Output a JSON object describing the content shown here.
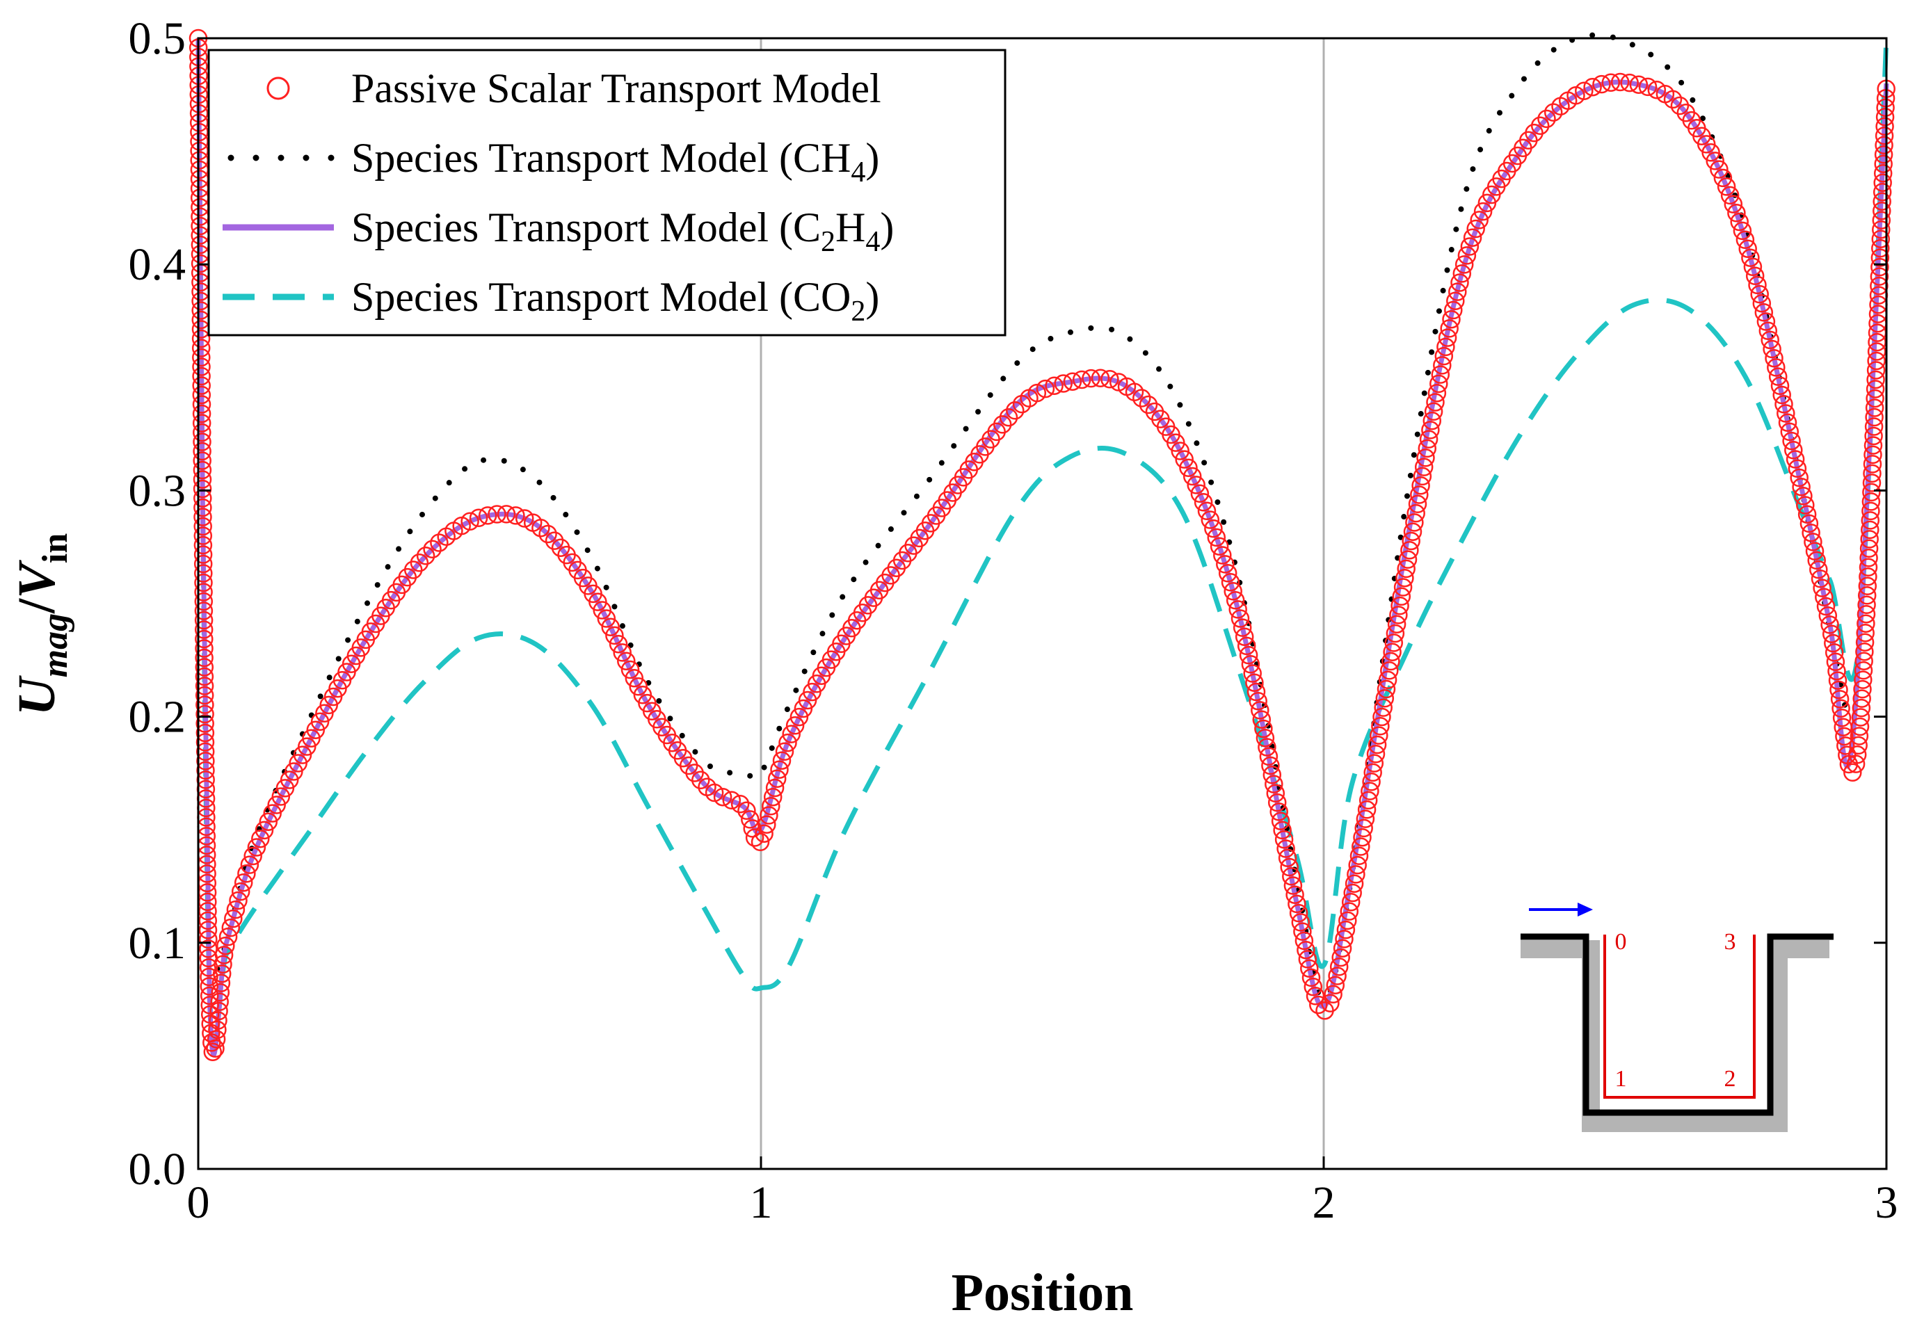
{
  "chart_data": {
    "type": "line",
    "xlabel": "Position",
    "ylabel": {
      "main_u": "U",
      "sub_u": "mag",
      "slash": "/",
      "main_v": "V",
      "sub_v": "in"
    },
    "xlim": [
      0,
      3
    ],
    "ylim": [
      0.0,
      0.5
    ],
    "x_ticks": [
      "0",
      "1",
      "2",
      "3"
    ],
    "y_ticks": [
      "0.0",
      "0.1",
      "0.2",
      "0.3",
      "0.4",
      "0.5"
    ],
    "gridlines_x": [
      1,
      2
    ],
    "legend_position": "top-left",
    "series": [
      {
        "name": "Passive Scalar Transport Model",
        "style": "open-circles",
        "color": "#ff2020",
        "legend": {
          "base": "Passive Scalar Transport Model",
          "sub": "",
          "tail": ""
        },
        "x": [
          0.0,
          0.02,
          0.05,
          0.1,
          0.2,
          0.3,
          0.4,
          0.5,
          0.6,
          0.7,
          0.8,
          0.9,
          0.97,
          1.0,
          1.05,
          1.15,
          1.3,
          1.45,
          1.55,
          1.65,
          1.75,
          1.85,
          1.95,
          2.0,
          2.05,
          2.15,
          2.25,
          2.35,
          2.45,
          2.55,
          2.65,
          2.75,
          2.85,
          2.9,
          2.95,
          3.0
        ],
        "y": [
          0.5,
          0.077,
          0.1,
          0.14,
          0.19,
          0.235,
          0.27,
          0.288,
          0.285,
          0.255,
          0.205,
          0.17,
          0.16,
          0.145,
          0.19,
          0.235,
          0.285,
          0.335,
          0.348,
          0.346,
          0.315,
          0.245,
          0.12,
          0.07,
          0.12,
          0.27,
          0.4,
          0.45,
          0.475,
          0.48,
          0.465,
          0.41,
          0.3,
          0.24,
          0.187,
          0.48
        ]
      },
      {
        "name": "Species Transport Model (CH4)",
        "style": "dotted",
        "color": "#000000",
        "legend": {
          "base": "Species Transport Model (CH",
          "sub": "4",
          "tail": ")"
        },
        "x": [
          0.02,
          0.05,
          0.1,
          0.2,
          0.3,
          0.4,
          0.5,
          0.6,
          0.7,
          0.8,
          0.9,
          0.97,
          1.0,
          1.05,
          1.15,
          1.3,
          1.45,
          1.55,
          1.65,
          1.75,
          1.85,
          1.95,
          2.0,
          2.05,
          2.15,
          2.25,
          2.35,
          2.45,
          2.55,
          2.65,
          2.75,
          2.85,
          2.93
        ],
        "y": [
          0.08,
          0.1,
          0.145,
          0.2,
          0.25,
          0.29,
          0.313,
          0.305,
          0.27,
          0.215,
          0.18,
          0.175,
          0.175,
          0.205,
          0.255,
          0.305,
          0.355,
          0.37,
          0.368,
          0.335,
          0.26,
          0.13,
          0.075,
          0.13,
          0.3,
          0.43,
          0.48,
          0.5,
          0.497,
          0.475,
          0.415,
          0.3,
          0.2
        ]
      },
      {
        "name": "Species Transport Model (C2H4)",
        "style": "solid",
        "color": "#a366e0",
        "legend": {
          "base": "Species Transport Model (C",
          "sub": "2",
          "tail": "H|4|)"
        },
        "x": [
          0.0,
          0.02,
          0.05,
          0.1,
          0.2,
          0.3,
          0.4,
          0.5,
          0.6,
          0.7,
          0.8,
          0.9,
          0.97,
          1.0,
          1.05,
          1.15,
          1.3,
          1.45,
          1.55,
          1.65,
          1.75,
          1.85,
          1.95,
          2.0,
          2.05,
          2.15,
          2.25,
          2.35,
          2.45,
          2.55,
          2.65,
          2.75,
          2.85,
          2.9,
          2.94,
          3.0
        ],
        "y": [
          0.5,
          0.077,
          0.1,
          0.14,
          0.19,
          0.235,
          0.27,
          0.288,
          0.285,
          0.255,
          0.205,
          0.17,
          0.16,
          0.15,
          0.19,
          0.235,
          0.285,
          0.337,
          0.348,
          0.346,
          0.315,
          0.245,
          0.12,
          0.072,
          0.13,
          0.28,
          0.4,
          0.45,
          0.475,
          0.48,
          0.465,
          0.41,
          0.3,
          0.24,
          0.19,
          0.48
        ]
      },
      {
        "name": "Species Transport Model (CO2)",
        "style": "dashed",
        "color": "#20c4c4",
        "legend": {
          "base": "Species Transport Model (CO",
          "sub": "2",
          "tail": ")"
        },
        "x": [
          0.0,
          0.02,
          0.05,
          0.1,
          0.2,
          0.3,
          0.4,
          0.5,
          0.6,
          0.7,
          0.8,
          0.9,
          0.97,
          1.0,
          1.05,
          1.15,
          1.3,
          1.45,
          1.55,
          1.65,
          1.75,
          1.85,
          1.95,
          2.0,
          2.05,
          2.15,
          2.25,
          2.35,
          2.45,
          2.55,
          2.65,
          2.75,
          2.85,
          2.9,
          2.95,
          3.0
        ],
        "y": [
          0.5,
          0.08,
          0.095,
          0.115,
          0.15,
          0.185,
          0.215,
          0.235,
          0.232,
          0.205,
          0.16,
          0.115,
          0.085,
          0.08,
          0.09,
          0.15,
          0.22,
          0.29,
          0.315,
          0.316,
          0.29,
          0.22,
          0.14,
          0.09,
          0.17,
          0.23,
          0.28,
          0.325,
          0.36,
          0.382,
          0.38,
          0.35,
          0.29,
          0.26,
          0.23,
          0.5
        ]
      }
    ],
    "inset": {
      "labels": [
        "0",
        "1",
        "2",
        "3"
      ],
      "arrow_color": "#0000ff",
      "path_color": "#e00000"
    }
  }
}
